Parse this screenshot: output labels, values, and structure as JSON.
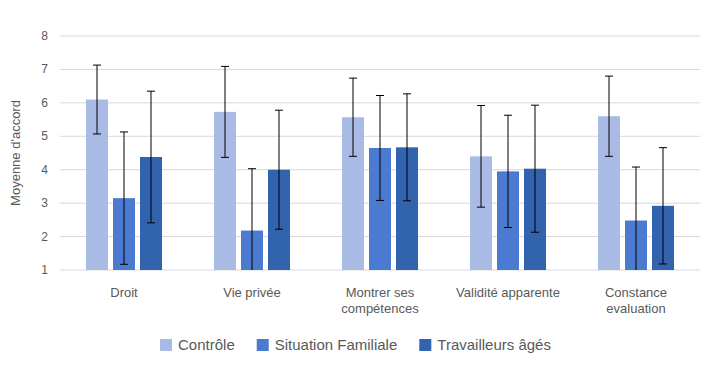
{
  "chart_data": {
    "type": "bar",
    "y_label": "Moyenne d'accord",
    "categories": [
      "Droit",
      "Vie privée",
      "Montrer ses compétences",
      "Validité apparente",
      "Constance evaluation"
    ],
    "series": [
      {
        "name": "Contrôle",
        "color": "#a9bbe4",
        "values": [
          6.1,
          5.73,
          5.57,
          4.4,
          5.6
        ],
        "errors": [
          1.03,
          1.36,
          1.17,
          1.52,
          1.2
        ]
      },
      {
        "name": "Situation Familiale",
        "color": "#4a7bd1",
        "values": [
          3.15,
          2.18,
          4.65,
          3.95,
          2.48
        ],
        "errors": [
          1.98,
          1.85,
          1.57,
          1.68,
          1.6
        ]
      },
      {
        "name": "Travailleurs âgés",
        "color": "#3263ad",
        "values": [
          4.38,
          4.0,
          4.67,
          4.03,
          2.92
        ],
        "errors": [
          1.97,
          1.78,
          1.6,
          1.9,
          1.74
        ]
      }
    ],
    "ylim": [
      1,
      8
    ],
    "yticks": [
      1,
      2,
      3,
      4,
      5,
      6,
      7,
      8
    ],
    "grid": true,
    "legend": "bottom"
  }
}
